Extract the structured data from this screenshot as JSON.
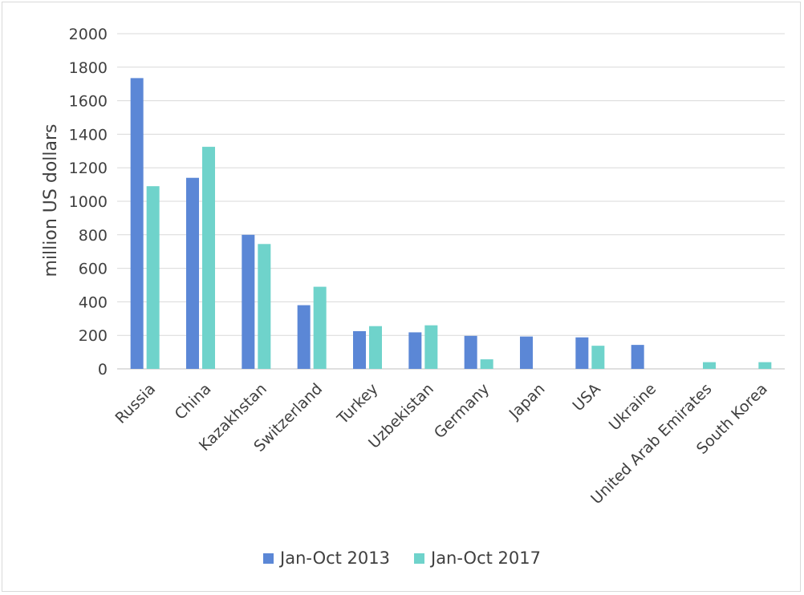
{
  "chart_data": {
    "type": "bar",
    "ylabel": "million US dollars",
    "ylim": [
      0,
      2000
    ],
    "yticks": [
      0,
      200,
      400,
      600,
      800,
      1000,
      1200,
      1400,
      1600,
      1800,
      2000
    ],
    "grid": true,
    "legend_position": "bottom",
    "categories": [
      "Russia",
      "China",
      "Kazakhstan",
      "Switzerland",
      "Turkey",
      "Uzbekistan",
      "Germany",
      "Japan",
      "USA",
      "Ukraine",
      "United Arab Emirates",
      "South Korea"
    ],
    "series": [
      {
        "name": "Jan-Oct 2013",
        "color": "#5b87d6",
        "values": [
          1735,
          1140,
          800,
          380,
          225,
          218,
          197,
          193,
          188,
          143,
          0,
          0
        ]
      },
      {
        "name": "Jan-Oct 2017",
        "color": "#6fd3cb",
        "values": [
          1090,
          1325,
          745,
          490,
          255,
          260,
          57,
          0,
          138,
          0,
          40,
          40
        ]
      }
    ]
  }
}
